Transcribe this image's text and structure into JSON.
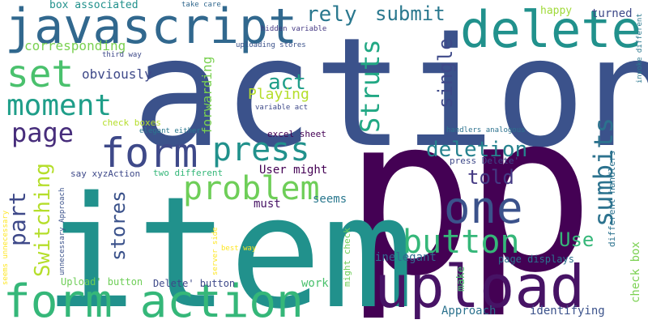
{
  "cloud": {
    "words": [
      {
        "text": "action",
        "color": "#3b528b"
      },
      {
        "text": "p",
        "color": "#440154"
      },
      {
        "text": "p",
        "color": "#440154"
      },
      {
        "text": "item",
        "color": "#21918c"
      },
      {
        "text": "upload",
        "color": "#471365"
      },
      {
        "text": "form action",
        "color": "#35b779"
      },
      {
        "text": "javascript",
        "color": "#31688e"
      },
      {
        "text": "delete",
        "color": "#21918c"
      },
      {
        "text": "form",
        "color": "#3e4989"
      },
      {
        "text": "one",
        "color": "#3b528b"
      },
      {
        "text": "button",
        "color": "#35b779"
      },
      {
        "text": "problem",
        "color": "#6ece58"
      },
      {
        "text": "press",
        "color": "#21918c"
      },
      {
        "text": "moment",
        "color": "#1f9e89"
      },
      {
        "text": "set",
        "color": "#4ac16d"
      },
      {
        "text": "page",
        "color": "#472d7b"
      },
      {
        "text": "part",
        "color": "#3e4989"
      },
      {
        "text": "Struts",
        "color": "#22a884"
      },
      {
        "text": "sumbits",
        "color": "#2c728e"
      },
      {
        "text": "Switching",
        "color": "#b5de2b"
      },
      {
        "text": "stores",
        "color": "#3b528b"
      },
      {
        "text": "act",
        "color": "#1f9e89"
      },
      {
        "text": "deletion",
        "color": "#26828e"
      },
      {
        "text": "single",
        "color": "#3e4989"
      },
      {
        "text": "rely",
        "color": "#2a788e"
      },
      {
        "text": "submit",
        "color": "#2a788e"
      },
      {
        "text": "told",
        "color": "#443983"
      },
      {
        "text": "Use",
        "color": "#35b779"
      },
      {
        "text": "Playing",
        "color": "#b5de2b"
      },
      {
        "text": "forwarding",
        "color": "#7ad151"
      },
      {
        "text": "corresponding",
        "color": "#7ad151"
      },
      {
        "text": "obviously",
        "color": "#3e4989"
      },
      {
        "text": "box associated",
        "color": "#21918c"
      },
      {
        "text": "happy",
        "color": "#a0da39"
      },
      {
        "text": "turned",
        "color": "#3e4989"
      },
      {
        "text": "User might",
        "color": "#440154"
      },
      {
        "text": "seems",
        "color": "#2a788e"
      },
      {
        "text": "must",
        "color": "#471365"
      },
      {
        "text": "inelegant",
        "color": "#31688e"
      },
      {
        "text": "Approach",
        "color": "#2c728e"
      },
      {
        "text": "identifying",
        "color": "#3b528b"
      },
      {
        "text": "work",
        "color": "#4ac16d"
      },
      {
        "text": "make",
        "color": "#4ac16d"
      },
      {
        "text": "check box",
        "color": "#7ad151"
      },
      {
        "text": "page displays",
        "color": "#2c728e"
      },
      {
        "text": "Delete' button",
        "color": "#3e4989"
      },
      {
        "text": "Upload' button",
        "color": "#6ece58"
      },
      {
        "text": "check boxes",
        "color": "#b5de2b"
      },
      {
        "text": "excel sheet",
        "color": "#440154"
      },
      {
        "text": "two different",
        "color": "#35b779"
      },
      {
        "text": "say xyzAction",
        "color": "#3e4989"
      },
      {
        "text": "might check",
        "color": "#6ece58"
      },
      {
        "text": "press Delete'",
        "color": "#3e4989"
      },
      {
        "text": "different handlers",
        "color": "#2c728e"
      },
      {
        "text": "uploading stores",
        "color": "#3b528b"
      },
      {
        "text": "hidden variable",
        "color": "#443983"
      },
      {
        "text": "third way",
        "color": "#3e4989"
      },
      {
        "text": "variable act",
        "color": "#3e4989"
      },
      {
        "text": "handlers analogous",
        "color": "#2c728e"
      },
      {
        "text": "elegant either",
        "color": "#2a788e"
      },
      {
        "text": "take care",
        "color": "#31688e"
      },
      {
        "text": "invoke different",
        "color": "#2a788e"
      },
      {
        "text": "unnecessary Approach",
        "color": "#3b528b"
      },
      {
        "text": "seems unnecessary",
        "color": "#fde725"
      },
      {
        "text": "server side",
        "color": "#fde725"
      },
      {
        "text": "best way",
        "color": "#fde725"
      }
    ]
  }
}
